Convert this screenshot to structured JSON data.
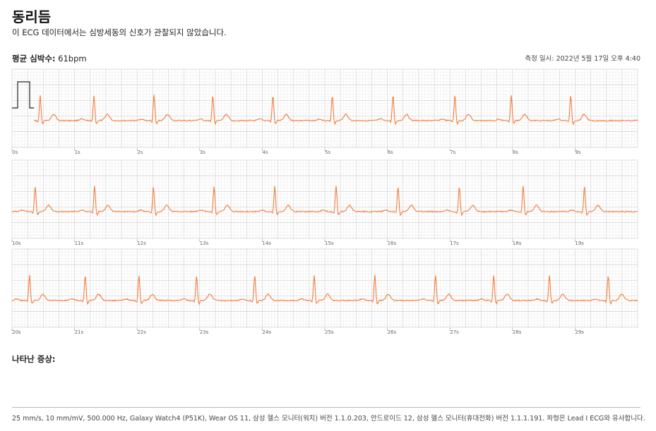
{
  "header": {
    "title": "동리듬",
    "subtitle": "이 ECG 데이터에서는 심방세동의 신호가 관찰되지 않았습니다.",
    "avg_hr_label": "평균 심박수:",
    "avg_hr_value": "61bpm",
    "measured": "측정 일시: 2022년 5월 17일 오후 4:40"
  },
  "strips": [
    {
      "ticks": [
        "0s",
        "1s",
        "2s",
        "3s",
        "4s",
        "5s",
        "6s",
        "7s",
        "8s",
        "9s"
      ]
    },
    {
      "ticks": [
        "10s",
        "11s",
        "12s",
        "13s",
        "14s",
        "15s",
        "16s",
        "17s",
        "18s",
        "19s"
      ]
    },
    {
      "ticks": [
        "20s",
        "21s",
        "22s",
        "23s",
        "24s",
        "25s",
        "26s",
        "27s",
        "28s",
        "29s"
      ]
    }
  ],
  "symptoms_label": "나타난 증상:",
  "footer": "25 mm/s, 10 mm/mV, 500.000 Hz, Galaxy Watch4 (P51K), Wear OS 11, 삼성 헬스 모니터(워치) 버전 1.1.0.203, 안드로이드 12, 삼성 헬스 모니터(휴대전화) 버전 1.1.1.191. 파형은 Lead I ECG와 유사합니다.",
  "colors": {
    "trace": "#f27d3f",
    "grid_minor": "#e6e6e6",
    "grid_major": "#cfcfcf"
  },
  "beats_seconds": [
    [
      0.45,
      1.31,
      2.27,
      3.21,
      4.17,
      5.12,
      6.09,
      7.08,
      7.98,
      8.93
    ],
    [
      10.37,
      11.32,
      12.26,
      13.23,
      14.2,
      15.18,
      16.17,
      17.15,
      18.17,
      19.15
    ],
    [
      20.28,
      21.17,
      22.03,
      22.95,
      23.88,
      24.83,
      25.8,
      26.77,
      27.7,
      28.59,
      29.53
    ]
  ]
}
